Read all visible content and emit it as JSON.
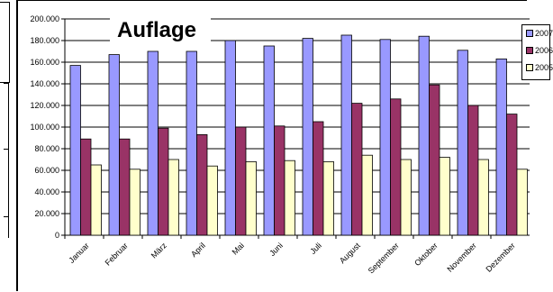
{
  "chart_data": {
    "type": "bar",
    "title": "Auflage",
    "xlabel": "",
    "ylabel": "",
    "ylim": [
      0,
      200000
    ],
    "y_tick_labels": [
      "0",
      "20.000",
      "40.000",
      "60.000",
      "80.000",
      "100.000",
      "120.000",
      "140.000",
      "160.000",
      "180.000",
      "200.000"
    ],
    "grid": true,
    "legend_position": "top-right",
    "categories": [
      "Januar",
      "Februar",
      "März",
      "April",
      "Mai",
      "Juni",
      "Juli",
      "August",
      "September",
      "Oktober",
      "November",
      "Dezember"
    ],
    "series": [
      {
        "name": "2007",
        "color": "#9999ff",
        "values": [
          157000,
          167000,
          170000,
          170000,
          180000,
          175000,
          182000,
          185000,
          181000,
          184000,
          171000,
          163000
        ]
      },
      {
        "name": "2006",
        "color": "#993366",
        "values": [
          89000,
          89000,
          99000,
          93000,
          100000,
          101000,
          105000,
          122000,
          126000,
          139000,
          120000,
          112000
        ]
      },
      {
        "name": "2005",
        "color": "#ffffcc",
        "values": [
          65000,
          61000,
          70000,
          64000,
          68000,
          69000,
          68000,
          74000,
          70000,
          72000,
          70000,
          61000
        ]
      }
    ]
  }
}
